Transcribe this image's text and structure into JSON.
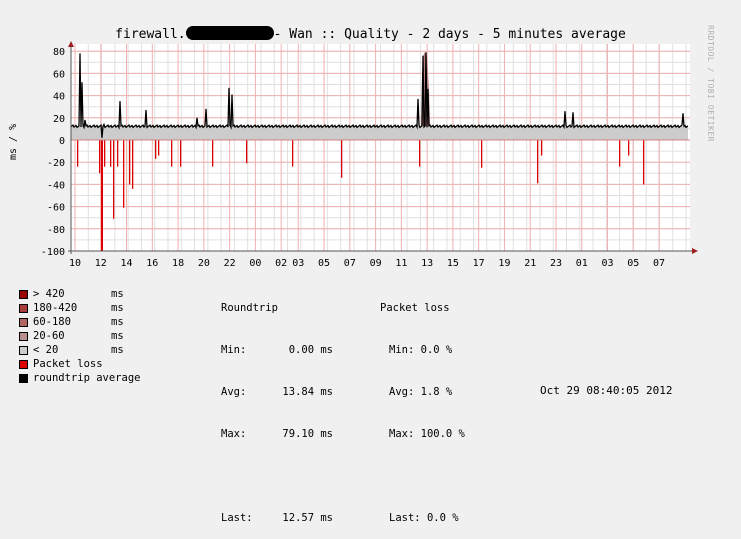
{
  "header": {
    "title_prefix": "firewall.",
    "title_suffix": "- Wan :: Quality - 2 days - 5 minutes average",
    "y_axis_label": "ms / %",
    "watermark": "RRDTOOL / TOBI OETIKER"
  },
  "legend": [
    {
      "label": "> 420",
      "unit": "ms",
      "color": "#990000"
    },
    {
      "label": "180-420",
      "unit": "ms",
      "color": "#a83c3c"
    },
    {
      "label": "60-180",
      "unit": "ms",
      "color": "#b06464"
    },
    {
      "label": "20-60",
      "unit": "ms",
      "color": "#b89090"
    },
    {
      "label": "< 20",
      "unit": "ms",
      "color": "#cccccc"
    },
    {
      "label": "Packet loss",
      "unit": "",
      "color": "#dd0000"
    },
    {
      "label": "roundtrip average",
      "unit": "",
      "color": "#000000"
    }
  ],
  "roundtrip": {
    "header": "Roundtrip",
    "min_label": "Min:",
    "min": "0.00 ms",
    "avg_label": "Avg:",
    "avg": "13.84 ms",
    "max_label": "Max:",
    "max": "79.10 ms",
    "last_label": "Last:",
    "last": "12.57 ms"
  },
  "packet_loss": {
    "header": "Packet loss",
    "min_label": "Min:",
    "min": "0.0 %",
    "avg_label": "Avg:",
    "avg": "1.8 %",
    "max_label": "Max:",
    "max": "100.0 %",
    "last_label": "Last:",
    "last": "0.0 %"
  },
  "footer": {
    "timestamp": "Oct 29 08:40:05 2012"
  },
  "chart_data": {
    "type": "area",
    "title": "firewall.[redacted] - Wan :: Quality - 2 days - 5 minutes average",
    "xlabel": "",
    "ylabel": "ms / %",
    "ylim": [
      -100,
      80
    ],
    "yticks": [
      80,
      60,
      40,
      20,
      0,
      -20,
      -40,
      -60,
      -80,
      -100
    ],
    "xticks": [
      "10",
      "12",
      "14",
      "16",
      "18",
      "20",
      "22",
      "00",
      "02",
      "03",
      "05",
      "07",
      "09",
      "11",
      "13",
      "15",
      "17",
      "19",
      "21",
      "23",
      "01",
      "03",
      "05",
      "07"
    ],
    "grid": true,
    "legend_position": "bottom-left",
    "series": [
      {
        "name": "roundtrip average (ms)",
        "baseline": 12.6,
        "spikes": [
          {
            "x": "10:20",
            "value": 78
          },
          {
            "x": "10:30",
            "value": 52
          },
          {
            "x": "10:40",
            "value": 18
          },
          {
            "x": "13:30",
            "value": 35
          },
          {
            "x": "15:30",
            "value": 27
          },
          {
            "x": "19:30",
            "value": 20
          },
          {
            "x": "20:10",
            "value": 28
          },
          {
            "x": "21:50",
            "value": 47
          },
          {
            "x": "21:55",
            "value": 41
          },
          {
            "x": "11:40",
            "value": 37
          },
          {
            "x": "12:00",
            "value": 79
          },
          {
            "x": "12:15",
            "value": 46
          },
          {
            "x": "22:50",
            "value": 26
          },
          {
            "x": "23:20",
            "value": 25
          },
          {
            "x": "07:50",
            "value": 24
          }
        ]
      },
      {
        "name": "Packet loss (%)",
        "sign": "negative",
        "spikes": [
          {
            "x": "10:15",
            "value": 24
          },
          {
            "x": "11:45",
            "value": 30
          },
          {
            "x": "11:55",
            "value": 100
          },
          {
            "x": "12:15",
            "value": 24
          },
          {
            "x": "12:40",
            "value": 24
          },
          {
            "x": "13:00",
            "value": 71
          },
          {
            "x": "13:30",
            "value": 24
          },
          {
            "x": "14:00",
            "value": 61
          },
          {
            "x": "14:40",
            "value": 40
          },
          {
            "x": "14:50",
            "value": 44
          },
          {
            "x": "16:15",
            "value": 17
          },
          {
            "x": "16:30",
            "value": 14
          },
          {
            "x": "17:30",
            "value": 24
          },
          {
            "x": "18:15",
            "value": 24
          },
          {
            "x": "20:40",
            "value": 24
          },
          {
            "x": "22:45",
            "value": 21
          },
          {
            "x": "02:30",
            "value": 24
          },
          {
            "x": "05:35",
            "value": 34
          },
          {
            "x": "11:35",
            "value": 24
          },
          {
            "x": "16:35",
            "value": 25
          },
          {
            "x": "20:45",
            "value": 39
          },
          {
            "x": "21:10",
            "value": 14
          },
          {
            "x": "02:55",
            "value": 24
          },
          {
            "x": "03:40",
            "value": 14
          },
          {
            "x": "04:55",
            "value": 40
          }
        ]
      }
    ]
  }
}
